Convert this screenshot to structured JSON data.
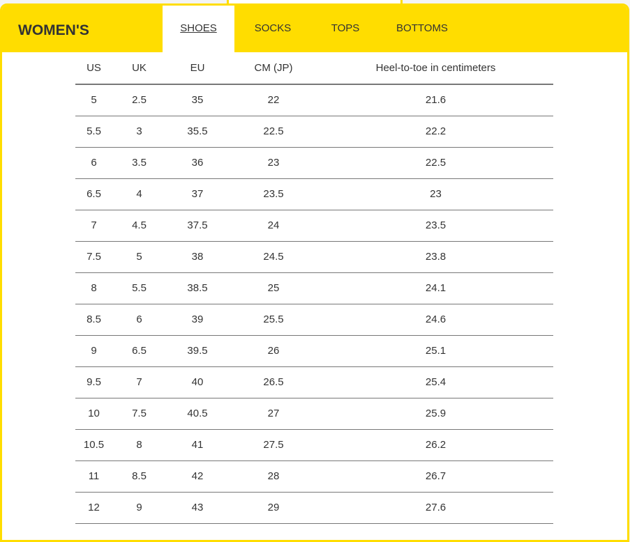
{
  "header": {
    "title": "WOMEN'S",
    "tabs": [
      {
        "label": "SHOES",
        "active": true
      },
      {
        "label": "SOCKS"
      },
      {
        "label": "TOPS"
      },
      {
        "label": "BOTTOMS"
      }
    ]
  },
  "colors": {
    "accent": "#ffdd00"
  },
  "table": {
    "headers": [
      "US",
      "UK",
      "EU",
      "CM (JP)",
      "Heel-to-toe in centimeters"
    ],
    "rows": [
      [
        "5",
        "2.5",
        "35",
        "22",
        "21.6"
      ],
      [
        "5.5",
        "3",
        "35.5",
        "22.5",
        "22.2"
      ],
      [
        "6",
        "3.5",
        "36",
        "23",
        "22.5"
      ],
      [
        "6.5",
        "4",
        "37",
        "23.5",
        "23"
      ],
      [
        "7",
        "4.5",
        "37.5",
        "24",
        "23.5"
      ],
      [
        "7.5",
        "5",
        "38",
        "24.5",
        "23.8"
      ],
      [
        "8",
        "5.5",
        "38.5",
        "25",
        "24.1"
      ],
      [
        "8.5",
        "6",
        "39",
        "25.5",
        "24.6"
      ],
      [
        "9",
        "6.5",
        "39.5",
        "26",
        "25.1"
      ],
      [
        "9.5",
        "7",
        "40",
        "26.5",
        "25.4"
      ],
      [
        "10",
        "7.5",
        "40.5",
        "27",
        "25.9"
      ],
      [
        "10.5",
        "8",
        "41",
        "27.5",
        "26.2"
      ],
      [
        "11",
        "8.5",
        "42",
        "28",
        "26.7"
      ],
      [
        "12",
        "9",
        "43",
        "29",
        "27.6"
      ]
    ]
  }
}
